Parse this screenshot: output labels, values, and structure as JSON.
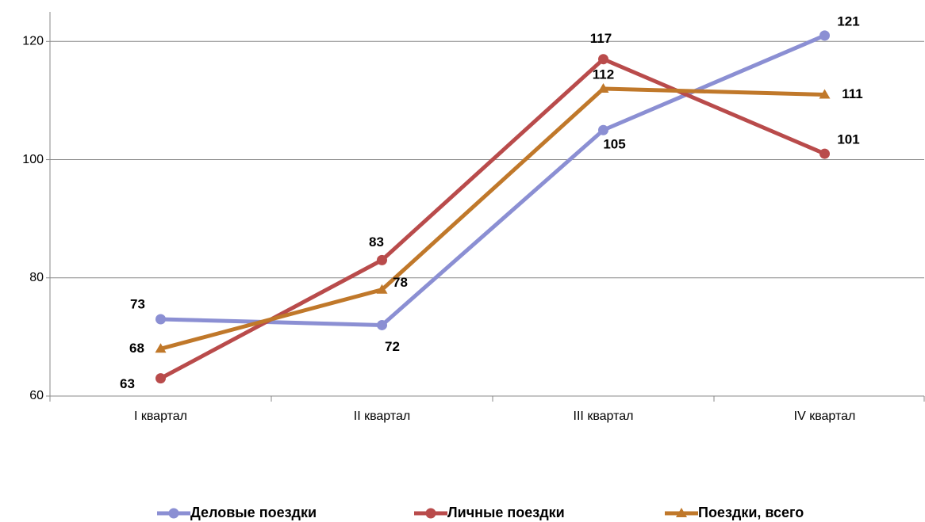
{
  "chart_data": {
    "type": "line",
    "categories": [
      "I квартал",
      "II квартал",
      "III квартал",
      "IV квартал"
    ],
    "series": [
      {
        "name": "Деловые поездки",
        "color": "#8b8fd3",
        "marker": "circle",
        "values": [
          73,
          72,
          105,
          121
        ]
      },
      {
        "name": "Личные поездки",
        "color": "#b94b4b",
        "marker": "circle",
        "values": [
          63,
          83,
          117,
          101
        ]
      },
      {
        "name": "Поездки, всего",
        "color": "#c0782a",
        "marker": "triangle",
        "values": [
          68,
          78,
          112,
          111
        ]
      }
    ],
    "ylim": [
      60,
      125
    ],
    "yticks": [
      60,
      80,
      100,
      120
    ],
    "grid": true,
    "legend": "bottom"
  }
}
